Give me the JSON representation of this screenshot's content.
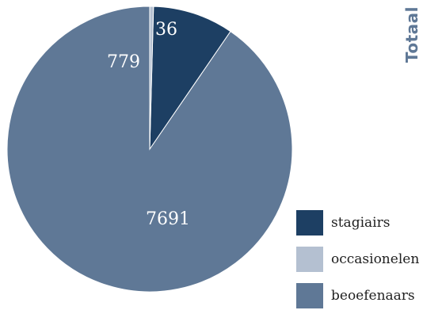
{
  "chart_data": {
    "type": "pie",
    "title": "Totaal",
    "slices": [
      {
        "name": "beoefenaars",
        "value": 7691,
        "label": "7691",
        "color": "#5f7896"
      },
      {
        "name": "stagiairs",
        "value": 779,
        "label": "779",
        "color": "#1d3f63"
      },
      {
        "name": "occasionelen",
        "value": 36,
        "label": "36",
        "color": "#b4c0d1"
      }
    ],
    "legend": {
      "placement": "bottom-right",
      "items": [
        {
          "label": "stagiairs",
          "color": "#1d3f63"
        },
        {
          "label": "occasionelen",
          "color": "#b4c0d1"
        },
        {
          "label": "beoefenaars",
          "color": "#5f7896"
        }
      ]
    }
  }
}
